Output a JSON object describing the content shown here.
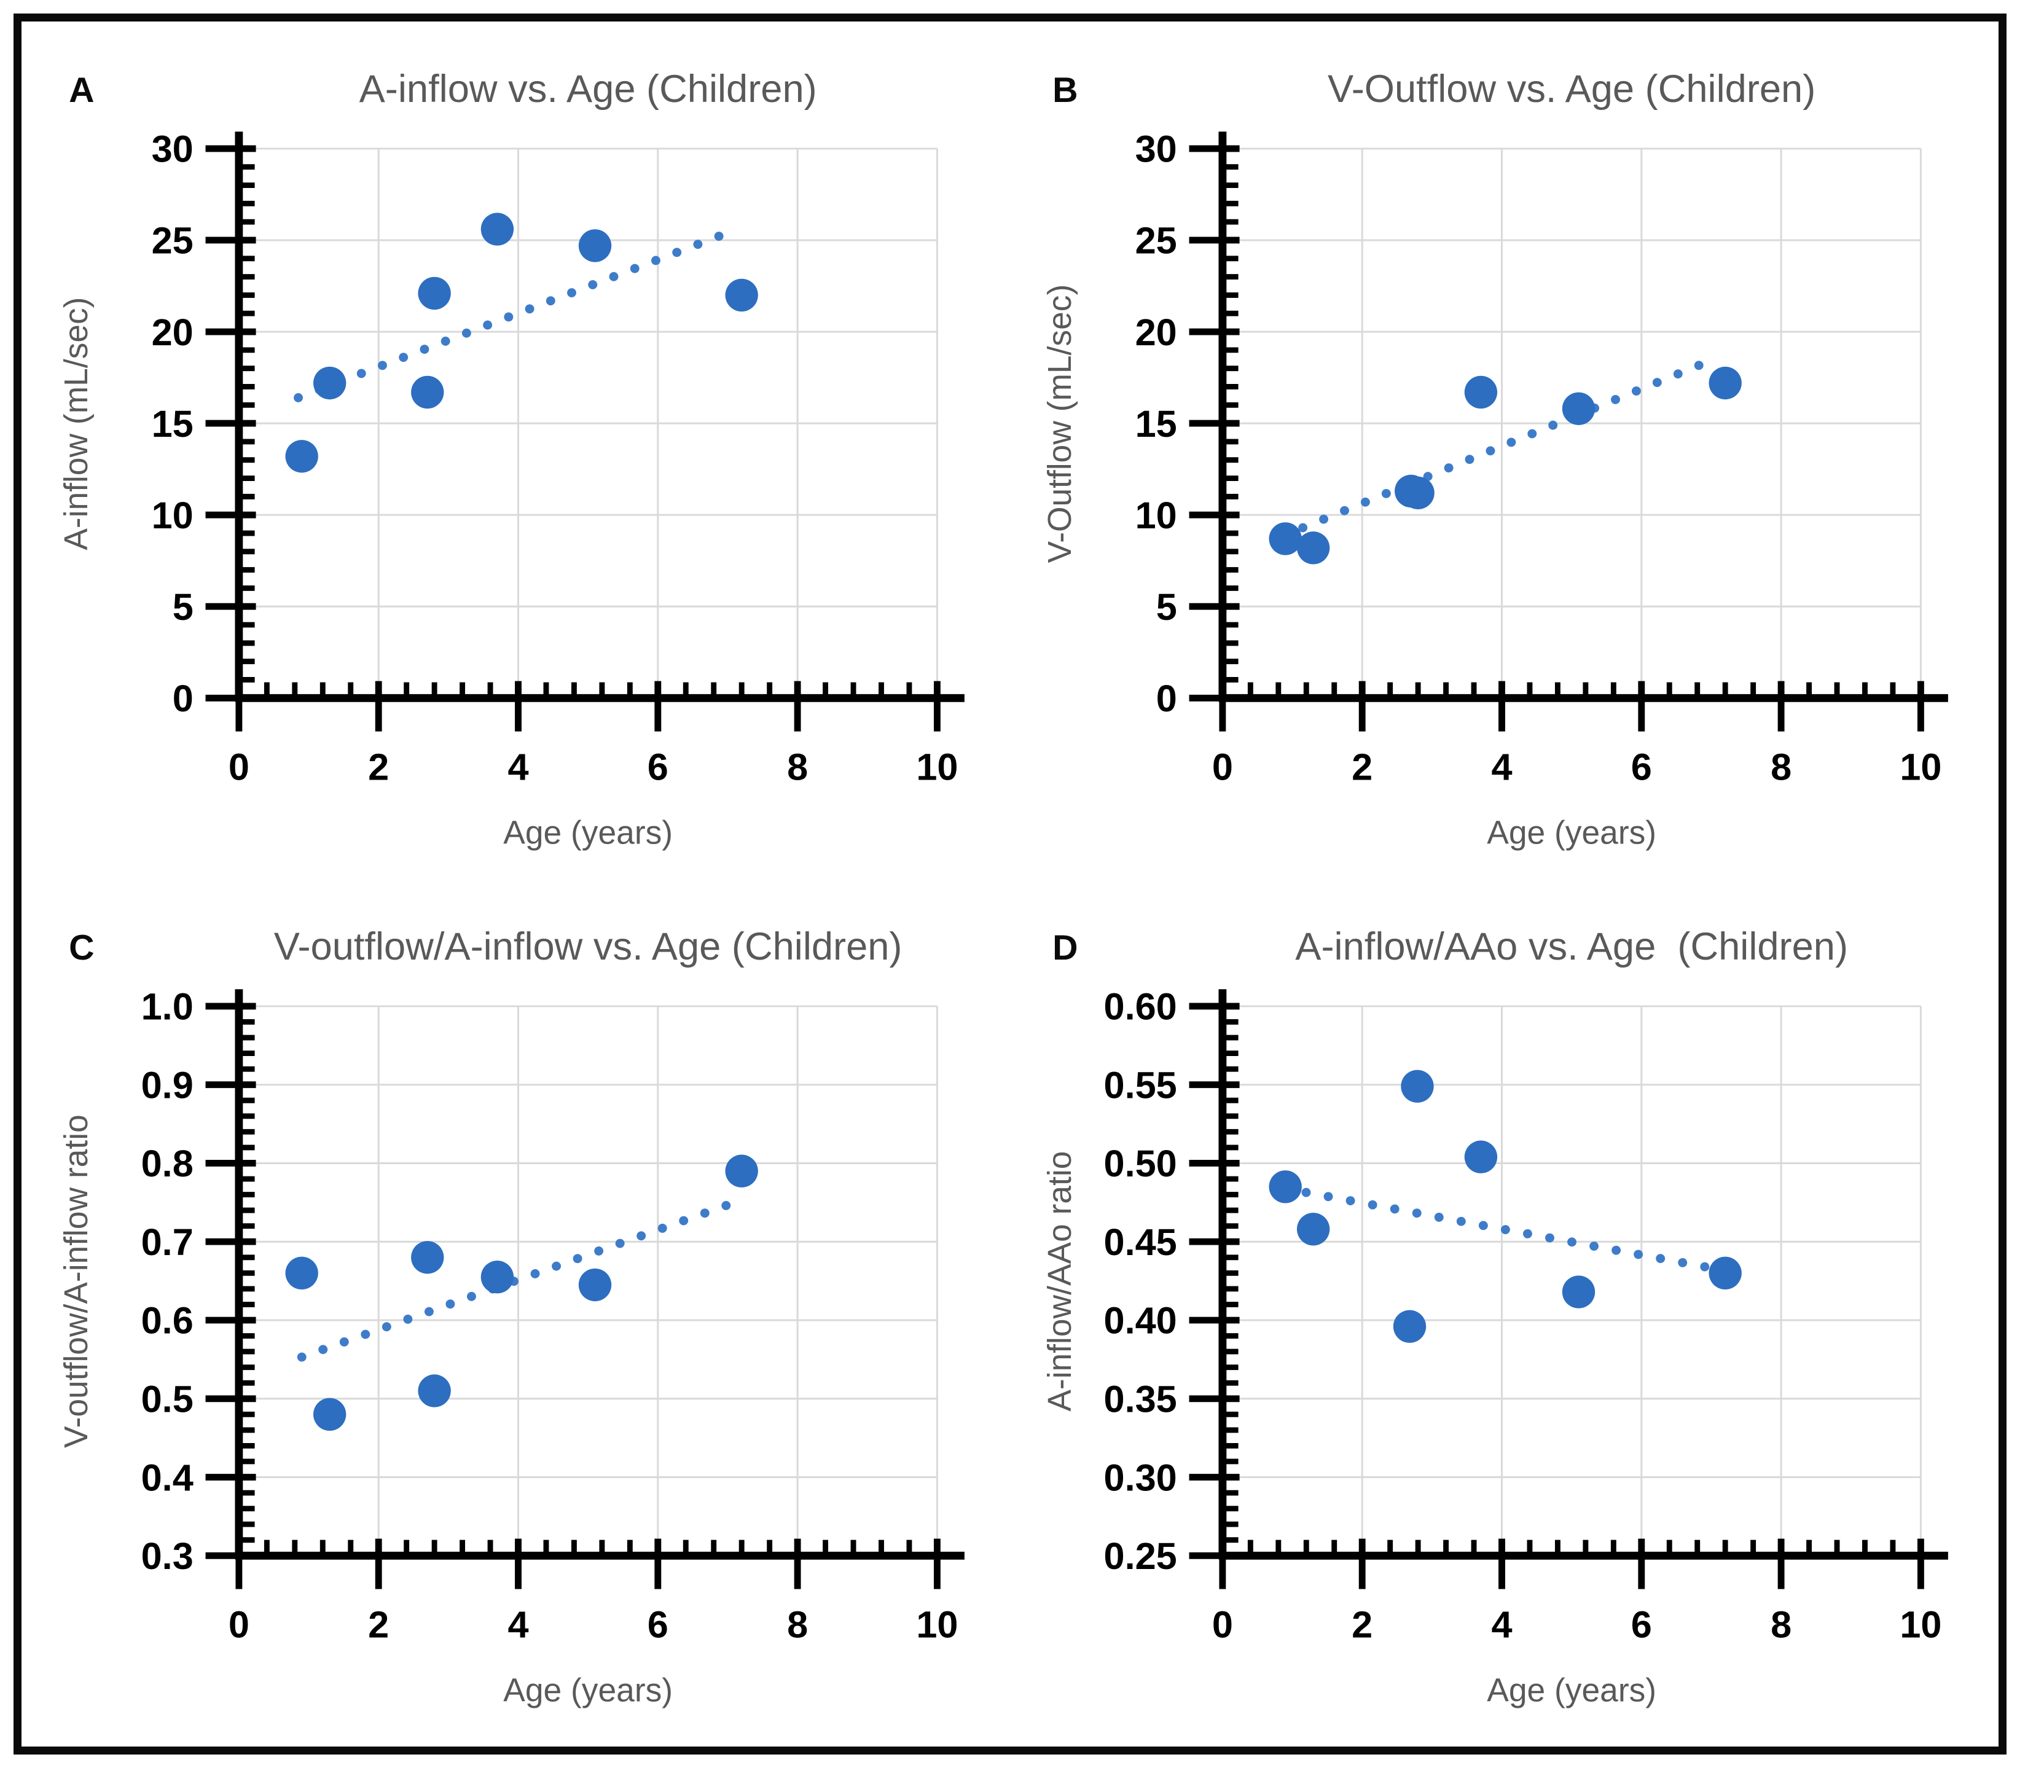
{
  "figure": {
    "description": "Four scatter plots with dotted linear trendlines, panels A-D, framed by a black border",
    "background": "#FFFFFF"
  },
  "colors": {
    "marker": "#2D6EC0",
    "trendline": "#3E7CC9",
    "gridline": "#D9D9D9",
    "axis": "#000000",
    "title_text": "#595959",
    "tick_text": "#000000",
    "frame_border": "#0A0A0A",
    "background": "#FFFFFF"
  },
  "chart_data": [
    {
      "letter": "A",
      "type": "scatter",
      "title": "A-inflow vs. Age (Children)",
      "xlabel": "Age (years)",
      "ylabel": "A-inflow (mL/sec)",
      "xlim": [
        0,
        10
      ],
      "x_major": 2,
      "x_minor": 0.4,
      "ylim": [
        0,
        30
      ],
      "y_major": 5,
      "y_minor": 1,
      "y_decimals": 0,
      "grid": true,
      "legend": "none",
      "points": [
        [
          0.9,
          13.2
        ],
        [
          1.3,
          17.2
        ],
        [
          2.7,
          16.7
        ],
        [
          2.8,
          22.1
        ],
        [
          3.7,
          25.6
        ],
        [
          5.1,
          24.7
        ],
        [
          7.2,
          22.0
        ]
      ],
      "trendline": {
        "type": "linear",
        "style": "dotted",
        "x1": 0.85,
        "y1": 16.4,
        "x2": 7.0,
        "y2": 25.4
      }
    },
    {
      "letter": "B",
      "type": "scatter",
      "title": "V-Outflow vs. Age (Children)",
      "xlabel": "Age (years)",
      "ylabel": "V-Outflow (mL/sec)",
      "xlim": [
        0,
        10
      ],
      "x_major": 2,
      "x_minor": 0.4,
      "ylim": [
        0,
        30
      ],
      "y_major": 5,
      "y_minor": 1,
      "y_decimals": 0,
      "grid": true,
      "legend": "none",
      "points": [
        [
          0.9,
          8.7
        ],
        [
          1.3,
          8.2
        ],
        [
          2.7,
          11.3
        ],
        [
          2.8,
          11.2
        ],
        [
          3.7,
          16.7
        ],
        [
          5.1,
          15.8
        ],
        [
          7.2,
          17.2
        ]
      ],
      "trendline": {
        "type": "linear",
        "style": "dotted",
        "x1": 1.15,
        "y1": 9.3,
        "x2": 7.1,
        "y2": 18.6
      }
    },
    {
      "letter": "C",
      "type": "scatter",
      "title": "V-outflow/A-inflow vs. Age (Children)",
      "xlabel": "Age (years)",
      "ylabel": "V-outflow/A-inflow ratio",
      "xlim": [
        0,
        10
      ],
      "x_major": 2,
      "x_minor": 0.4,
      "ylim": [
        0.3,
        1.0
      ],
      "y_major": 0.1,
      "y_minor": 0.02,
      "y_decimals": 1,
      "grid": true,
      "legend": "none",
      "points": [
        [
          0.9,
          0.66
        ],
        [
          1.3,
          0.48
        ],
        [
          2.7,
          0.68
        ],
        [
          2.8,
          0.51
        ],
        [
          3.7,
          0.655
        ],
        [
          5.1,
          0.645
        ],
        [
          7.2,
          0.79
        ]
      ],
      "trendline": {
        "type": "linear",
        "style": "dotted",
        "x1": 0.9,
        "y1": 0.553,
        "x2": 7.1,
        "y2": 0.75
      }
    },
    {
      "letter": "D",
      "type": "scatter",
      "title": "A-inflow/AAo vs. Age  (Children)",
      "xlabel": "Age (years)",
      "ylabel": "A-inflow/AAo ratio",
      "xlim": [
        0,
        10
      ],
      "x_major": 2,
      "x_minor": 0.4,
      "ylim": [
        0.25,
        0.6
      ],
      "y_major": 0.05,
      "y_minor": 0.01,
      "y_decimals": 2,
      "grid": true,
      "legend": "none",
      "points": [
        [
          0.9,
          0.485
        ],
        [
          1.3,
          0.458
        ],
        [
          2.68,
          0.396
        ],
        [
          2.79,
          0.549
        ],
        [
          3.7,
          0.504
        ],
        [
          5.1,
          0.418
        ],
        [
          7.2,
          0.43
        ]
      ],
      "trendline": {
        "type": "linear",
        "style": "dotted",
        "x1": 0.88,
        "y1": 0.484,
        "x2": 7.15,
        "y2": 0.432
      }
    }
  ]
}
